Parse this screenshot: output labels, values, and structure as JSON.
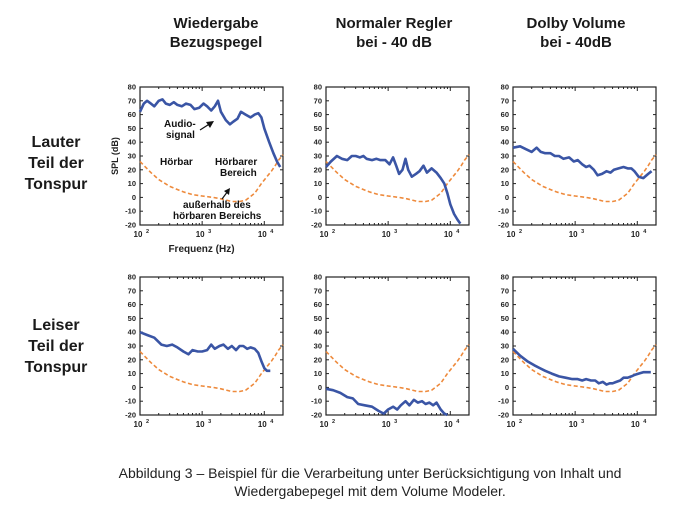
{
  "columns": [
    {
      "line1": "Wiedergabe",
      "line2": "Bezugspegel"
    },
    {
      "line1": "Normaler Regler",
      "line2": "bei - 40 dB"
    },
    {
      "line1": "Dolby Volume",
      "line2": "bei - 40dB"
    }
  ],
  "rows": [
    {
      "line1": "Lauter",
      "line2": "Teil der",
      "line3": "Tonspur"
    },
    {
      "line1": "Leiser",
      "line2": "Teil der",
      "line3": "Tonspur"
    }
  ],
  "caption": {
    "line1": "Abbildung 3 – Beispiel für die Verarbeitung unter Berücksichtigung von Inhalt und",
    "line2": "Wiedergabepegel mit dem Volume Modeler."
  },
  "colors": {
    "signal": "#3a55a5",
    "threshold": "#ee8a3c",
    "axis": "#222222"
  },
  "chart_data": [
    {
      "type": "line",
      "row": 0,
      "col": 0,
      "xlabel": "Frequenz (Hz)",
      "ylabel": "SPL (dB)",
      "xscale": "log",
      "xlim": [
        100,
        20000
      ],
      "ylim": [
        -20,
        80
      ],
      "yticks": [
        -20,
        -10,
        0,
        10,
        20,
        30,
        40,
        50,
        60,
        70,
        80
      ],
      "xticks": [
        {
          "value": 100,
          "exp": "2"
        },
        {
          "value": 1000,
          "exp": "3"
        },
        {
          "value": 10000,
          "exp": "4"
        }
      ],
      "annotations": [
        "Audio-",
        "signal",
        "Hörbar",
        "Hörbarer",
        "Bereich",
        "außerhalb des",
        "hörbaren Bereichs"
      ],
      "signal": [
        [
          100,
          62
        ],
        [
          115,
          68
        ],
        [
          130,
          70
        ],
        [
          150,
          68
        ],
        [
          170,
          66
        ],
        [
          200,
          70
        ],
        [
          230,
          71
        ],
        [
          260,
          68
        ],
        [
          300,
          67
        ],
        [
          350,
          69
        ],
        [
          400,
          67
        ],
        [
          470,
          66
        ],
        [
          550,
          68
        ],
        [
          650,
          67
        ],
        [
          750,
          64
        ],
        [
          900,
          65
        ],
        [
          1050,
          68
        ],
        [
          1200,
          66
        ],
        [
          1400,
          63
        ],
        [
          1600,
          66
        ],
        [
          1800,
          70
        ],
        [
          2000,
          62
        ],
        [
          2400,
          56
        ],
        [
          2800,
          53
        ],
        [
          3200,
          55
        ],
        [
          3700,
          57
        ],
        [
          4200,
          62
        ],
        [
          5000,
          60
        ],
        [
          6000,
          58
        ],
        [
          7000,
          60
        ],
        [
          8000,
          61
        ],
        [
          9000,
          58
        ],
        [
          10000,
          50
        ],
        [
          12000,
          40
        ],
        [
          14000,
          32
        ],
        [
          16000,
          26
        ],
        [
          18000,
          22
        ]
      ],
      "threshold": [
        [
          100,
          26
        ],
        [
          150,
          18
        ],
        [
          200,
          13
        ],
        [
          300,
          8
        ],
        [
          500,
          4
        ],
        [
          700,
          2
        ],
        [
          1000,
          1
        ],
        [
          1500,
          0
        ],
        [
          2000,
          -1
        ],
        [
          3000,
          -3
        ],
        [
          4000,
          -3
        ],
        [
          5000,
          -2
        ],
        [
          7000,
          3
        ],
        [
          9000,
          10
        ],
        [
          11000,
          15
        ],
        [
          13000,
          19
        ],
        [
          15000,
          23
        ],
        [
          17000,
          27
        ],
        [
          20000,
          31
        ]
      ]
    },
    {
      "type": "line",
      "row": 0,
      "col": 1,
      "xscale": "log",
      "xlim": [
        100,
        20000
      ],
      "ylim": [
        -20,
        80
      ],
      "yticks": [
        -20,
        -10,
        0,
        10,
        20,
        30,
        40,
        50,
        60,
        70,
        80
      ],
      "xticks": [
        {
          "value": 100,
          "exp": "2"
        },
        {
          "value": 1000,
          "exp": "3"
        },
        {
          "value": 10000,
          "exp": "4"
        }
      ],
      "signal": [
        [
          100,
          22
        ],
        [
          120,
          26
        ],
        [
          150,
          30
        ],
        [
          180,
          28
        ],
        [
          220,
          27
        ],
        [
          260,
          30
        ],
        [
          300,
          30
        ],
        [
          350,
          29
        ],
        [
          400,
          30
        ],
        [
          450,
          28
        ],
        [
          550,
          27
        ],
        [
          650,
          28
        ],
        [
          750,
          27
        ],
        [
          900,
          27
        ],
        [
          1050,
          24
        ],
        [
          1200,
          29
        ],
        [
          1350,
          23
        ],
        [
          1500,
          17
        ],
        [
          1700,
          20
        ],
        [
          1900,
          28
        ],
        [
          2100,
          20
        ],
        [
          2400,
          15
        ],
        [
          2800,
          17
        ],
        [
          3200,
          19
        ],
        [
          3700,
          23
        ],
        [
          4200,
          18
        ],
        [
          5000,
          21
        ],
        [
          6000,
          18
        ],
        [
          7000,
          14
        ],
        [
          8000,
          10
        ],
        [
          9000,
          3
        ],
        [
          10000,
          -5
        ],
        [
          11500,
          -12
        ],
        [
          13000,
          -16
        ],
        [
          14500,
          -19
        ]
      ],
      "threshold": [
        [
          100,
          26
        ],
        [
          150,
          18
        ],
        [
          200,
          13
        ],
        [
          300,
          8
        ],
        [
          500,
          4
        ],
        [
          700,
          2
        ],
        [
          1000,
          1
        ],
        [
          1500,
          0
        ],
        [
          2000,
          -1
        ],
        [
          3000,
          -3
        ],
        [
          4000,
          -3
        ],
        [
          5000,
          -2
        ],
        [
          7000,
          3
        ],
        [
          9000,
          10
        ],
        [
          11000,
          15
        ],
        [
          13000,
          19
        ],
        [
          15000,
          23
        ],
        [
          17000,
          27
        ],
        [
          20000,
          31
        ]
      ]
    },
    {
      "type": "line",
      "row": 0,
      "col": 2,
      "xscale": "log",
      "xlim": [
        100,
        20000
      ],
      "ylim": [
        -20,
        80
      ],
      "yticks": [
        -20,
        -10,
        0,
        10,
        20,
        30,
        40,
        50,
        60,
        70,
        80
      ],
      "xticks": [
        {
          "value": 100,
          "exp": "2"
        },
        {
          "value": 1000,
          "exp": "3"
        },
        {
          "value": 10000,
          "exp": "4"
        }
      ],
      "signal": [
        [
          100,
          36
        ],
        [
          130,
          37
        ],
        [
          160,
          35
        ],
        [
          200,
          33
        ],
        [
          240,
          36
        ],
        [
          280,
          33
        ],
        [
          330,
          32
        ],
        [
          400,
          32
        ],
        [
          470,
          30
        ],
        [
          550,
          30
        ],
        [
          650,
          28
        ],
        [
          800,
          29
        ],
        [
          950,
          26
        ],
        [
          1100,
          27
        ],
        [
          1300,
          24
        ],
        [
          1500,
          22
        ],
        [
          1700,
          23
        ],
        [
          2000,
          20
        ],
        [
          2300,
          16
        ],
        [
          2700,
          17
        ],
        [
          3200,
          19
        ],
        [
          3700,
          18
        ],
        [
          4200,
          20
        ],
        [
          5000,
          21
        ],
        [
          6000,
          22
        ],
        [
          7000,
          21
        ],
        [
          8000,
          21
        ],
        [
          9000,
          19
        ],
        [
          10500,
          15
        ],
        [
          12500,
          14
        ],
        [
          15000,
          17
        ],
        [
          17000,
          19
        ]
      ],
      "threshold": [
        [
          100,
          26
        ],
        [
          150,
          18
        ],
        [
          200,
          13
        ],
        [
          300,
          8
        ],
        [
          500,
          4
        ],
        [
          700,
          2
        ],
        [
          1000,
          1
        ],
        [
          1500,
          0
        ],
        [
          2000,
          -1
        ],
        [
          3000,
          -3
        ],
        [
          4000,
          -3
        ],
        [
          5000,
          -2
        ],
        [
          7000,
          3
        ],
        [
          9000,
          10
        ],
        [
          11000,
          15
        ],
        [
          13000,
          19
        ],
        [
          15000,
          23
        ],
        [
          17000,
          27
        ],
        [
          20000,
          31
        ]
      ]
    },
    {
      "type": "line",
      "row": 1,
      "col": 0,
      "xscale": "log",
      "xlim": [
        100,
        20000
      ],
      "ylim": [
        -20,
        80
      ],
      "yticks": [
        -20,
        -10,
        0,
        10,
        20,
        30,
        40,
        50,
        60,
        70,
        80
      ],
      "xticks": [
        {
          "value": 100,
          "exp": "2"
        },
        {
          "value": 1000,
          "exp": "3"
        },
        {
          "value": 10000,
          "exp": "4"
        }
      ],
      "signal": [
        [
          100,
          40
        ],
        [
          130,
          38
        ],
        [
          170,
          36
        ],
        [
          220,
          31
        ],
        [
          270,
          30
        ],
        [
          330,
          31
        ],
        [
          400,
          29
        ],
        [
          500,
          26
        ],
        [
          600,
          24
        ],
        [
          700,
          27
        ],
        [
          850,
          26
        ],
        [
          1000,
          26
        ],
        [
          1200,
          27
        ],
        [
          1400,
          31
        ],
        [
          1600,
          28
        ],
        [
          1900,
          30
        ],
        [
          2200,
          31
        ],
        [
          2600,
          28
        ],
        [
          3000,
          30
        ],
        [
          3500,
          27
        ],
        [
          4000,
          30
        ],
        [
          4600,
          30
        ],
        [
          5300,
          28
        ],
        [
          6000,
          29
        ],
        [
          7000,
          28
        ],
        [
          8000,
          25
        ],
        [
          9000,
          19
        ],
        [
          10000,
          14
        ],
        [
          11000,
          12
        ],
        [
          12500,
          12
        ]
      ],
      "threshold": [
        [
          100,
          26
        ],
        [
          150,
          18
        ],
        [
          200,
          13
        ],
        [
          300,
          8
        ],
        [
          500,
          4
        ],
        [
          700,
          2
        ],
        [
          1000,
          1
        ],
        [
          1500,
          0
        ],
        [
          2000,
          -1
        ],
        [
          3000,
          -3
        ],
        [
          4000,
          -3
        ],
        [
          5000,
          -2
        ],
        [
          7000,
          3
        ],
        [
          9000,
          10
        ],
        [
          11000,
          15
        ],
        [
          13000,
          19
        ],
        [
          15000,
          23
        ],
        [
          17000,
          27
        ],
        [
          20000,
          31
        ]
      ]
    },
    {
      "type": "line",
      "row": 1,
      "col": 1,
      "xscale": "log",
      "xlim": [
        100,
        20000
      ],
      "ylim": [
        -20,
        80
      ],
      "yticks": [
        -20,
        -10,
        0,
        10,
        20,
        30,
        40,
        50,
        60,
        70,
        80
      ],
      "xticks": [
        {
          "value": 100,
          "exp": "2"
        },
        {
          "value": 1000,
          "exp": "3"
        },
        {
          "value": 10000,
          "exp": "4"
        }
      ],
      "signal": [
        [
          100,
          -1
        ],
        [
          130,
          -2
        ],
        [
          170,
          -4
        ],
        [
          220,
          -7
        ],
        [
          270,
          -8
        ],
        [
          330,
          -12
        ],
        [
          420,
          -13
        ],
        [
          550,
          -14
        ],
        [
          700,
          -17
        ],
        [
          850,
          -19
        ],
        [
          1000,
          -16
        ],
        [
          1200,
          -14
        ],
        [
          1400,
          -16
        ],
        [
          1600,
          -13
        ],
        [
          1900,
          -10
        ],
        [
          2200,
          -13
        ],
        [
          2600,
          -9
        ],
        [
          3000,
          -11
        ],
        [
          3500,
          -10
        ],
        [
          4000,
          -12
        ],
        [
          4600,
          -11
        ],
        [
          5300,
          -13
        ],
        [
          6000,
          -11
        ],
        [
          7000,
          -16
        ],
        [
          8000,
          -19
        ],
        [
          9000,
          -20
        ]
      ],
      "threshold": [
        [
          100,
          26
        ],
        [
          150,
          18
        ],
        [
          200,
          13
        ],
        [
          300,
          8
        ],
        [
          500,
          4
        ],
        [
          700,
          2
        ],
        [
          1000,
          1
        ],
        [
          1500,
          0
        ],
        [
          2000,
          -1
        ],
        [
          3000,
          -3
        ],
        [
          4000,
          -3
        ],
        [
          5000,
          -2
        ],
        [
          7000,
          3
        ],
        [
          9000,
          10
        ],
        [
          11000,
          15
        ],
        [
          13000,
          19
        ],
        [
          15000,
          23
        ],
        [
          17000,
          27
        ],
        [
          20000,
          31
        ]
      ]
    },
    {
      "type": "line",
      "row": 1,
      "col": 2,
      "xscale": "log",
      "xlim": [
        100,
        20000
      ],
      "ylim": [
        -20,
        80
      ],
      "yticks": [
        -20,
        -10,
        0,
        10,
        20,
        30,
        40,
        50,
        60,
        70,
        80
      ],
      "xticks": [
        {
          "value": 100,
          "exp": "2"
        },
        {
          "value": 1000,
          "exp": "3"
        },
        {
          "value": 10000,
          "exp": "4"
        }
      ],
      "signal": [
        [
          100,
          28
        ],
        [
          130,
          23
        ],
        [
          170,
          19
        ],
        [
          220,
          16
        ],
        [
          270,
          14
        ],
        [
          330,
          12
        ],
        [
          420,
          10
        ],
        [
          550,
          8
        ],
        [
          700,
          7
        ],
        [
          900,
          6
        ],
        [
          1100,
          6
        ],
        [
          1300,
          5
        ],
        [
          1500,
          6
        ],
        [
          1800,
          5
        ],
        [
          2100,
          5
        ],
        [
          2400,
          3
        ],
        [
          2800,
          4
        ],
        [
          3200,
          2
        ],
        [
          3600,
          3
        ],
        [
          4000,
          3
        ],
        [
          4600,
          4
        ],
        [
          5300,
          5
        ],
        [
          6000,
          7
        ],
        [
          7000,
          7
        ],
        [
          8000,
          8
        ],
        [
          9000,
          9
        ],
        [
          10500,
          10
        ],
        [
          12500,
          11
        ],
        [
          14500,
          11
        ],
        [
          16500,
          11
        ]
      ],
      "threshold": [
        [
          100,
          26
        ],
        [
          150,
          18
        ],
        [
          200,
          13
        ],
        [
          300,
          8
        ],
        [
          500,
          4
        ],
        [
          700,
          2
        ],
        [
          1000,
          1
        ],
        [
          1500,
          0
        ],
        [
          2000,
          -1
        ],
        [
          3000,
          -3
        ],
        [
          4000,
          -3
        ],
        [
          5000,
          -2
        ],
        [
          7000,
          3
        ],
        [
          9000,
          10
        ],
        [
          11000,
          15
        ],
        [
          13000,
          19
        ],
        [
          15000,
          23
        ],
        [
          17000,
          27
        ],
        [
          20000,
          31
        ]
      ]
    }
  ]
}
